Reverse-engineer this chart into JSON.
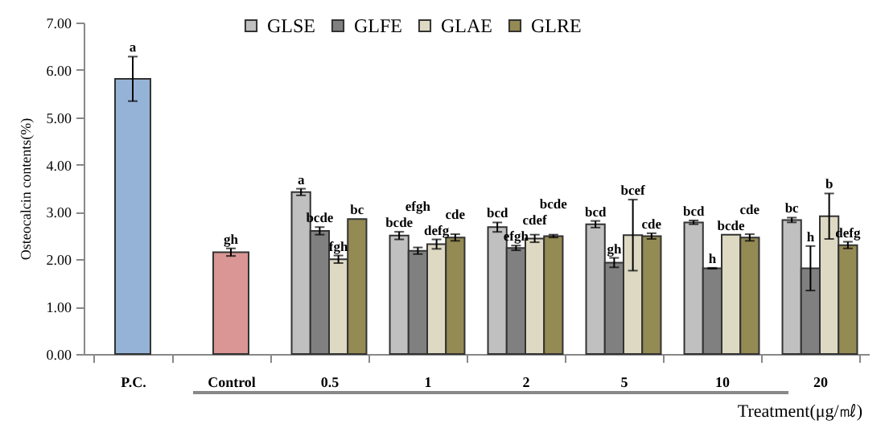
{
  "chart_data": {
    "type": "bar",
    "ylabel": "Osteocalcin contents(%)",
    "xlabel": "Treatment(μg/㎖)",
    "categories": [
      "P.C.",
      "Control",
      "0.5",
      "1",
      "2",
      "5",
      "10",
      "20"
    ],
    "ylim": [
      0,
      7
    ],
    "yticks": [
      {
        "value": 0,
        "label": "0.00"
      },
      {
        "value": 1,
        "label": "1.00"
      },
      {
        "value": 2,
        "label": "2.00"
      },
      {
        "value": 3,
        "label": "3.00"
      },
      {
        "value": 4,
        "label": "4.00"
      },
      {
        "value": 5,
        "label": "5.00"
      },
      {
        "value": 6,
        "label": "6.00"
      },
      {
        "value": 7,
        "label": "7.00"
      }
    ],
    "grid": false,
    "legend": "top",
    "series": [
      {
        "color": "#95b3d7",
        "values": [
          5.81,
          null,
          null,
          null,
          null,
          null,
          null,
          null
        ],
        "errors": [
          0.47,
          null,
          null,
          null,
          null,
          null,
          null,
          null
        ],
        "value_labels": [
          "a",
          null,
          null,
          null,
          null,
          null,
          null,
          null
        ]
      },
      {
        "color": "#d99694",
        "values": [
          null,
          2.15,
          null,
          null,
          null,
          null,
          null,
          null
        ],
        "errors": [
          null,
          0.08,
          null,
          null,
          null,
          null,
          null,
          null
        ],
        "value_labels": [
          null,
          "gh",
          null,
          null,
          null,
          null,
          null,
          null
        ]
      },
      {
        "name": "GLSE",
        "color": "#c0c0c0",
        "values": [
          null,
          null,
          3.42,
          2.5,
          2.68,
          2.74,
          2.78,
          2.83
        ],
        "errors": [
          null,
          null,
          0.07,
          0.08,
          0.1,
          0.07,
          0.04,
          0.05
        ],
        "value_labels": [
          null,
          null,
          "a",
          "bcde",
          "bcd",
          "bcd",
          "bcd",
          "bc"
        ]
      },
      {
        "name": "GLFE",
        "color": "#808080",
        "values": [
          null,
          null,
          2.6,
          2.18,
          2.24,
          1.93,
          1.81,
          1.81
        ],
        "errors": [
          null,
          null,
          0.08,
          0.07,
          0.05,
          0.1,
          0.01,
          0.47
        ],
        "value_labels": [
          null,
          null,
          "bcde",
          "efgh",
          "efgh",
          "gh",
          "h",
          "h"
        ]
      },
      {
        "name": "GLAE",
        "color": "#ddd9c3",
        "values": [
          null,
          null,
          2.0,
          2.32,
          2.44,
          2.51,
          2.52,
          2.91
        ],
        "errors": [
          null,
          null,
          0.08,
          0.1,
          0.08,
          0.75,
          null,
          0.48
        ],
        "value_labels": [
          null,
          null,
          "fgh",
          "defg",
          "cdef",
          "bcef",
          "bcde",
          "b"
        ]
      },
      {
        "name": "GLRE",
        "color": "#948a54",
        "values": [
          null,
          null,
          2.85,
          2.46,
          2.49,
          2.49,
          2.46,
          2.3
        ],
        "errors": [
          null,
          null,
          null,
          0.07,
          0.03,
          0.06,
          0.07,
          0.07
        ],
        "value_labels": [
          null,
          null,
          "bc",
          "cde",
          "bcde",
          "cde",
          "cde",
          "defg"
        ]
      }
    ]
  }
}
